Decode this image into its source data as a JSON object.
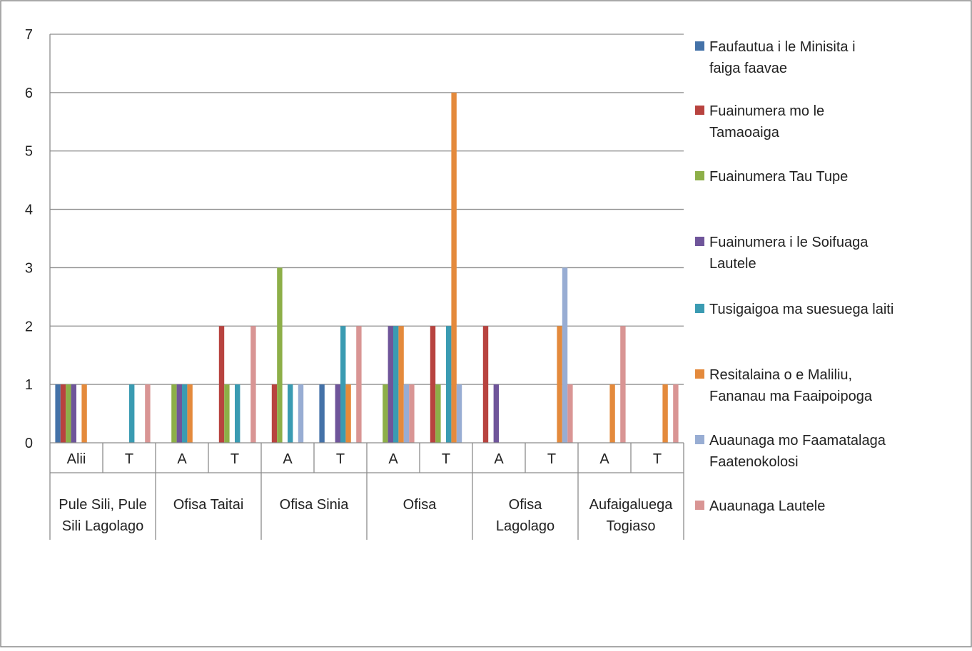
{
  "chart_data": {
    "type": "bar",
    "title": "",
    "xlabel": "",
    "ylabel": "",
    "ylim": [
      0,
      7
    ],
    "yticks": [
      "0",
      "1",
      "2",
      "3",
      "4",
      "5",
      "6",
      "7"
    ],
    "grid": true,
    "legend_position": "right",
    "categories": [
      "Alii",
      "T",
      "A",
      "T",
      "A",
      "T",
      "A",
      "T",
      "A",
      "T",
      "A",
      "T"
    ],
    "groups": [
      {
        "label_lines": [
          "Pule Sili, Pule",
          "Sili Lagolago"
        ],
        "span": 2
      },
      {
        "label_lines": [
          "Ofisa Taitai"
        ],
        "span": 2
      },
      {
        "label_lines": [
          "Ofisa Sinia"
        ],
        "span": 2
      },
      {
        "label_lines": [
          "Ofisa"
        ],
        "span": 2
      },
      {
        "label_lines": [
          "Ofisa",
          "Lagolago"
        ],
        "span": 2
      },
      {
        "label_lines": [
          "Aufaigaluega",
          "Togiaso"
        ],
        "span": 2
      }
    ],
    "series": [
      {
        "name": "Faufautua i le Minisita i faiga faavae",
        "legend_lines": [
          "Faufautua i le Minisita i",
          "faiga faavae"
        ],
        "color": "#4472A8",
        "values": [
          1,
          0,
          0,
          0,
          0,
          1,
          0,
          0,
          0,
          0,
          0,
          0
        ]
      },
      {
        "name": "Fuainumera mo le Tamaoaiga",
        "legend_lines": [
          "Fuainumera mo le",
          "Tamaoaiga"
        ],
        "color": "#B8433F",
        "values": [
          1,
          0,
          0,
          2,
          1,
          0,
          0,
          2,
          2,
          0,
          0,
          0
        ]
      },
      {
        "name": "Fuainumera Tau Tupe",
        "legend_lines": [
          "Fuainumera Tau Tupe"
        ],
        "color": "#8DAF48",
        "values": [
          1,
          0,
          1,
          1,
          3,
          0,
          1,
          1,
          0,
          0,
          0,
          0
        ]
      },
      {
        "name": "Fuainumera i le Soifuaga Lautele",
        "legend_lines": [
          "Fuainumera i le Soifuaga",
          "Lautele"
        ],
        "color": "#6F559A",
        "values": [
          1,
          0,
          1,
          0,
          0,
          1,
          2,
          0,
          1,
          0,
          0,
          0
        ]
      },
      {
        "name": "Tusigaigoa ma suesuega laiti",
        "legend_lines": [
          "Tusigaigoa ma suesuega laiti"
        ],
        "color": "#3A9BB2",
        "values": [
          0,
          1,
          1,
          1,
          1,
          2,
          2,
          2,
          0,
          0,
          0,
          0
        ]
      },
      {
        "name": "Resitalaina o e Maliliu, Fananau ma Faaipoipoga",
        "legend_lines": [
          "Resitalaina o e Maliliu,",
          "Fananau ma Faaipoipoga"
        ],
        "color": "#E48A3C",
        "values": [
          1,
          0,
          1,
          0,
          0,
          1,
          2,
          6,
          0,
          2,
          1,
          1
        ]
      },
      {
        "name": "Auaunaga mo Faamatalaga Faatenokolosi",
        "legend_lines": [
          "Auaunaga mo Faamatalaga",
          "Faatenokolosi"
        ],
        "color": "#98ADD3",
        "values": [
          0,
          0,
          0,
          0,
          1,
          0,
          1,
          1,
          0,
          3,
          0,
          0
        ]
      },
      {
        "name": "Auaunaga Lautele",
        "legend_lines": [
          "Auaunaga Lautele"
        ],
        "color": "#D99594",
        "values": [
          0,
          1,
          0,
          2,
          0,
          2,
          1,
          0,
          0,
          1,
          2,
          1
        ]
      }
    ]
  }
}
